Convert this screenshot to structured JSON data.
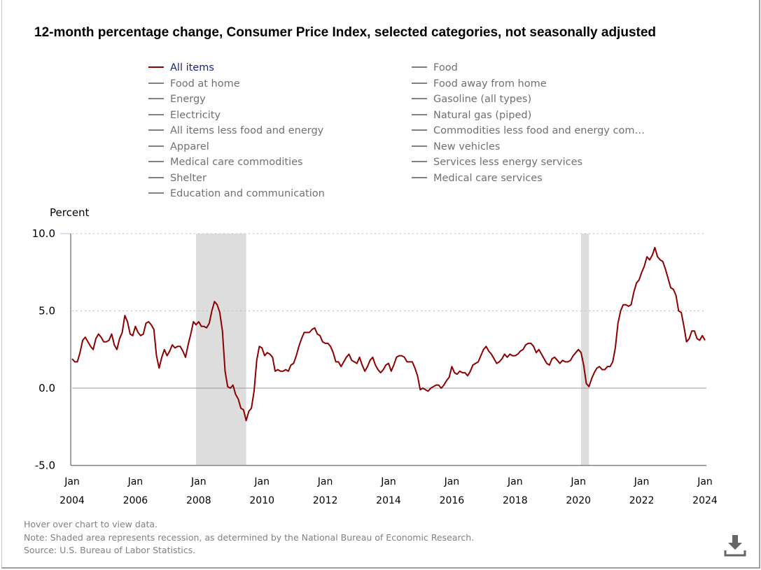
{
  "chart_data": {
    "type": "line",
    "title": "12-month percentage change, Consumer Price Index, selected categories, not seasonally adjusted",
    "ylabel": "Percent",
    "xlabel": "",
    "ylim": [
      -5,
      10
    ],
    "yticks": [
      "10.0",
      "5.0",
      "0.0",
      "-5.0"
    ],
    "ytick_values": [
      10,
      5,
      0,
      -5
    ],
    "xticks": [
      {
        "month": "Jan",
        "year": "2004"
      },
      {
        "month": "Jan",
        "year": "2006"
      },
      {
        "month": "Jan",
        "year": "2008"
      },
      {
        "month": "Jan",
        "year": "2010"
      },
      {
        "month": "Jan",
        "year": "2012"
      },
      {
        "month": "Jan",
        "year": "2014"
      },
      {
        "month": "Jan",
        "year": "2016"
      },
      {
        "month": "Jan",
        "year": "2018"
      },
      {
        "month": "Jan",
        "year": "2020"
      },
      {
        "month": "Jan",
        "year": "2022"
      },
      {
        "month": "Jan",
        "year": "2024"
      }
    ],
    "x_start": "2004-01",
    "x_end": "2024-01",
    "grid": "horizontal dotted",
    "recessions": [
      [
        "2007-12",
        "2009-06"
      ],
      [
        "2020-02",
        "2020-04"
      ]
    ],
    "recession_color": "#dddddd",
    "legend": {
      "placement": "top",
      "items": [
        {
          "label": "All items",
          "active": true
        },
        {
          "label": "Food",
          "active": false
        },
        {
          "label": "Food at home",
          "active": false
        },
        {
          "label": "Food away from home",
          "active": false
        },
        {
          "label": "Energy",
          "active": false
        },
        {
          "label": "Gasoline (all types)",
          "active": false
        },
        {
          "label": "Electricity",
          "active": false
        },
        {
          "label": "Natural gas (piped)",
          "active": false
        },
        {
          "label": "All items less food and energy",
          "active": false
        },
        {
          "label": "Commodities less food and energy com…",
          "active": false
        },
        {
          "label": "Apparel",
          "active": false
        },
        {
          "label": "New vehicles",
          "active": false
        },
        {
          "label": "Medical care commodities",
          "active": false
        },
        {
          "label": "Services less energy services",
          "active": false
        },
        {
          "label": "Shelter",
          "active": false
        },
        {
          "label": "Medical care services",
          "active": false
        },
        {
          "label": "Education and communication",
          "active": false
        }
      ]
    },
    "series": [
      {
        "name": "All items",
        "color": "#8b0000",
        "frequency": "monthly",
        "values": [
          1.9,
          1.7,
          1.7,
          2.3,
          3.1,
          3.3,
          3.0,
          2.7,
          2.5,
          3.2,
          3.5,
          3.3,
          3.0,
          3.0,
          3.1,
          3.5,
          2.8,
          2.5,
          3.2,
          3.6,
          4.7,
          4.3,
          3.5,
          3.4,
          4.0,
          3.6,
          3.4,
          3.5,
          4.2,
          4.3,
          4.1,
          3.8,
          2.1,
          1.3,
          2.0,
          2.5,
          2.1,
          2.4,
          2.8,
          2.6,
          2.7,
          2.7,
          2.4,
          2.0,
          2.8,
          3.5,
          4.3,
          4.1,
          4.3,
          4.0,
          4.0,
          3.9,
          4.2,
          5.0,
          5.6,
          5.4,
          4.9,
          3.7,
          1.1,
          0.1,
          0.0,
          0.2,
          -0.4,
          -0.7,
          -1.3,
          -1.4,
          -2.1,
          -1.5,
          -1.3,
          -0.2,
          1.8,
          2.7,
          2.6,
          2.1,
          2.3,
          2.2,
          2.0,
          1.1,
          1.2,
          1.1,
          1.1,
          1.2,
          1.1,
          1.5,
          1.6,
          2.1,
          2.7,
          3.2,
          3.6,
          3.6,
          3.6,
          3.8,
          3.9,
          3.5,
          3.4,
          3.0,
          2.9,
          2.9,
          2.7,
          2.3,
          1.7,
          1.7,
          1.4,
          1.7,
          2.0,
          2.2,
          1.8,
          1.7,
          1.6,
          2.0,
          1.5,
          1.1,
          1.4,
          1.8,
          2.0,
          1.5,
          1.2,
          1.0,
          1.2,
          1.5,
          1.6,
          1.1,
          1.5,
          2.0,
          2.1,
          2.1,
          2.0,
          1.7,
          1.7,
          1.7,
          1.3,
          0.8,
          -0.1,
          0.0,
          -0.1,
          -0.2,
          0.0,
          0.1,
          0.2,
          0.2,
          0.0,
          0.2,
          0.5,
          0.7,
          1.4,
          1.0,
          0.9,
          1.1,
          1.0,
          1.0,
          0.8,
          1.1,
          1.5,
          1.6,
          1.7,
          2.1,
          2.5,
          2.7,
          2.4,
          2.2,
          1.9,
          1.6,
          1.7,
          1.9,
          2.2,
          2.0,
          2.2,
          2.1,
          2.1,
          2.2,
          2.4,
          2.5,
          2.8,
          2.9,
          2.9,
          2.7,
          2.3,
          2.5,
          2.2,
          1.9,
          1.6,
          1.5,
          1.9,
          2.0,
          1.8,
          1.6,
          1.8,
          1.7,
          1.7,
          1.8,
          2.1,
          2.3,
          2.5,
          2.3,
          1.5,
          0.3,
          0.1,
          0.6,
          1.0,
          1.3,
          1.4,
          1.2,
          1.2,
          1.4,
          1.4,
          1.7,
          2.6,
          4.2,
          5.0,
          5.4,
          5.4,
          5.3,
          5.4,
          6.2,
          6.8,
          7.0,
          7.5,
          7.9,
          8.5,
          8.3,
          8.6,
          9.1,
          8.5,
          8.3,
          8.2,
          7.7,
          7.1,
          6.5,
          6.4,
          6.0,
          5.0,
          4.9,
          4.0,
          3.0,
          3.2,
          3.7,
          3.7,
          3.2,
          3.1,
          3.4,
          3.1
        ]
      }
    ]
  },
  "notes": {
    "hover": "Hover over chart to view data.",
    "shading": "Note: Shaded area represents recession, as determined by the National Bureau of Economic Research.",
    "source": "Source: U.S. Bureau of Labor Statistics."
  },
  "download_icon": "download-icon"
}
